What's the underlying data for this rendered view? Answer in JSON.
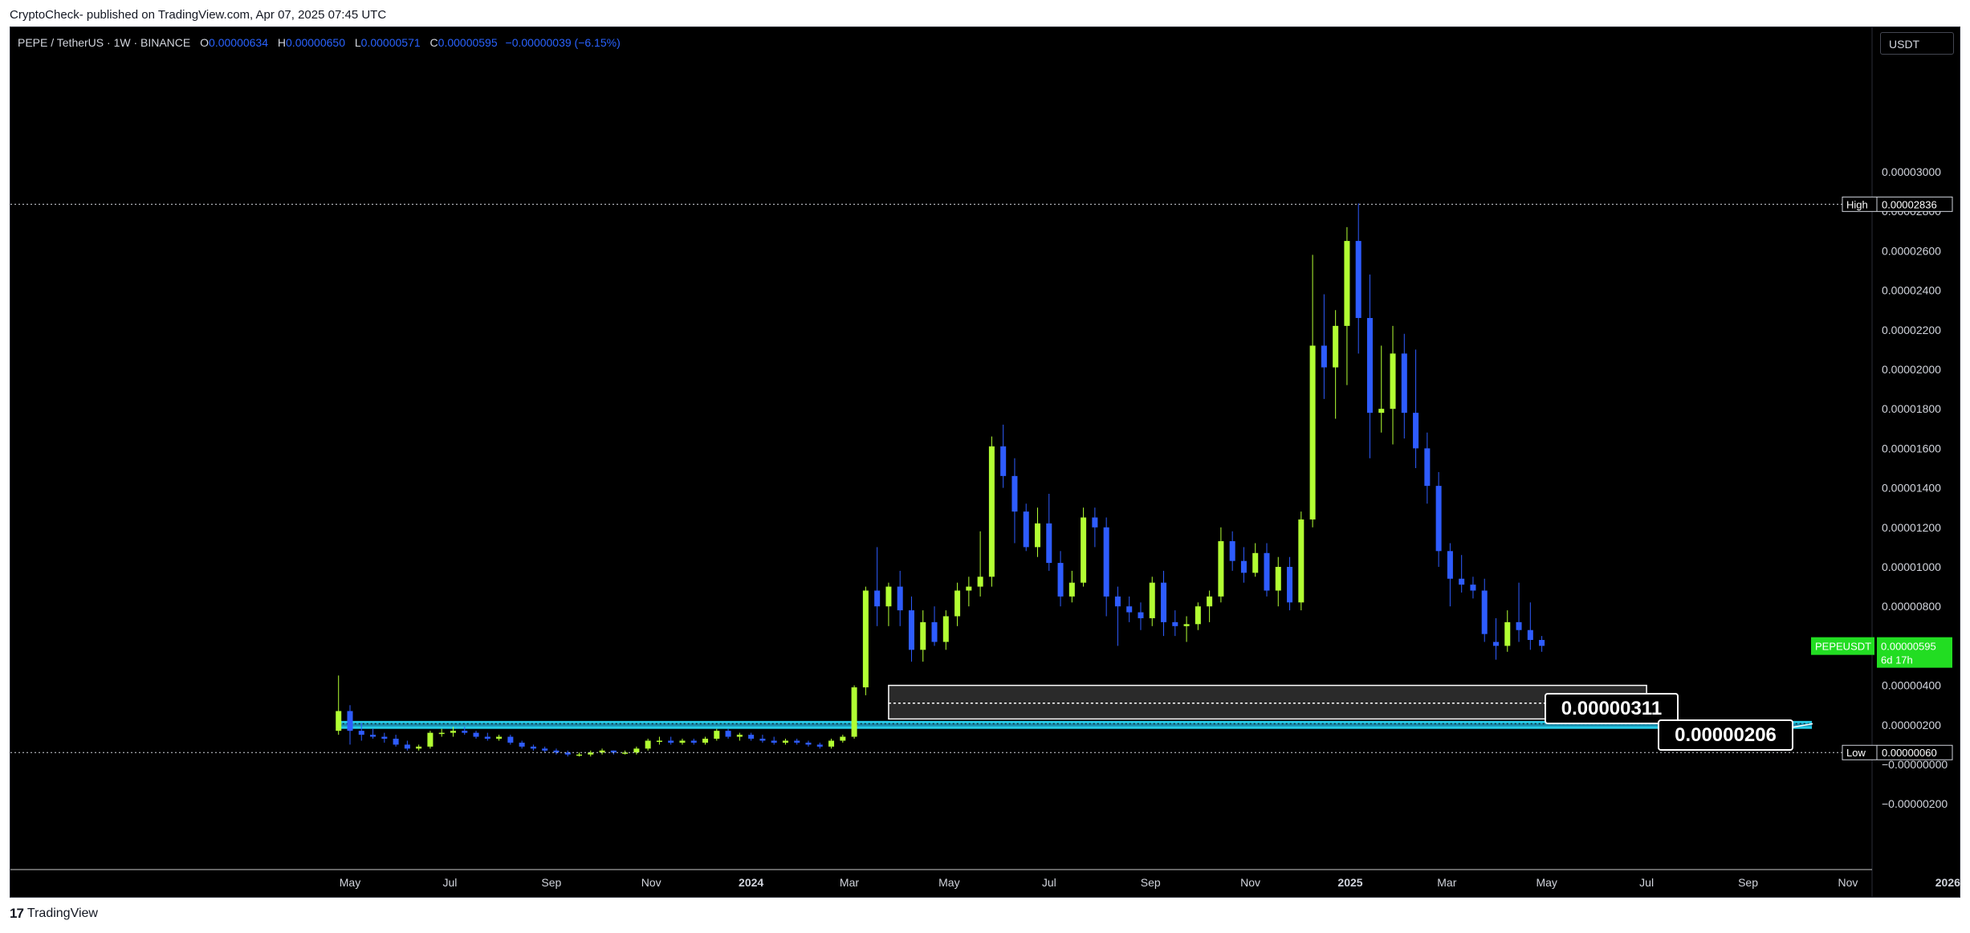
{
  "header": {
    "caption": "CryptoCheck- published on TradingView.com, Apr 07, 2025 07:45 UTC"
  },
  "legend": {
    "symbol": "PEPE / TetherUS · 1W · BINANCE",
    "open_label": "O",
    "open": "0.00000634",
    "high_label": "H",
    "high": "0.00000650",
    "low_label": "L",
    "low": "0.00000571",
    "close_label": "C",
    "close": "0.00000595",
    "change": "−0.00000039 (−6.15%)"
  },
  "currency_button": "USDT",
  "footer": {
    "logo": "17",
    "brand": "TradingView"
  },
  "colors": {
    "bull": "#b2ff33",
    "bear": "#2e5cff",
    "support": "#29d6f2",
    "price_badge": "#22dd22",
    "background": "#000000"
  },
  "chart_data": {
    "type": "candlestick",
    "y_axis": {
      "ticks": [
        3e-05,
        2.8e-05,
        2.6e-05,
        2.4e-05,
        2.2e-05,
        2e-05,
        1.8e-05,
        1.6e-05,
        1.4e-05,
        1.2e-05,
        1e-05,
        8e-06,
        4e-06,
        2e-06,
        0,
        -2e-06
      ],
      "tick_labels": [
        "0.00003000",
        "0.00002800",
        "0.00002600",
        "0.00002400",
        "0.00002200",
        "0.00002000",
        "0.00001800",
        "0.00001600",
        "0.00001400",
        "0.00001200",
        "0.00001000",
        "0.00000800",
        "0.00000400",
        "0.00000200",
        "−0.00000000",
        "−0.00000200"
      ]
    },
    "x_axis": {
      "ticks": [
        {
          "label": "May",
          "date": "2023-05-01",
          "bold": false
        },
        {
          "label": "Jul",
          "date": "2023-07-01",
          "bold": false
        },
        {
          "label": "Sep",
          "date": "2023-09-01",
          "bold": false
        },
        {
          "label": "Nov",
          "date": "2023-11-01",
          "bold": false
        },
        {
          "label": "2024",
          "date": "2024-01-01",
          "bold": true
        },
        {
          "label": "Mar",
          "date": "2024-03-01",
          "bold": false
        },
        {
          "label": "May",
          "date": "2024-05-01",
          "bold": false
        },
        {
          "label": "Jul",
          "date": "2024-07-01",
          "bold": false
        },
        {
          "label": "Sep",
          "date": "2024-09-01",
          "bold": false
        },
        {
          "label": "Nov",
          "date": "2024-11-01",
          "bold": false
        },
        {
          "label": "2025",
          "date": "2025-01-01",
          "bold": true
        },
        {
          "label": "Mar",
          "date": "2025-03-01",
          "bold": false
        },
        {
          "label": "May",
          "date": "2025-05-01",
          "bold": false
        },
        {
          "label": "Jul",
          "date": "2025-07-01",
          "bold": false
        },
        {
          "label": "Sep",
          "date": "2025-09-01",
          "bold": false
        },
        {
          "label": "Nov",
          "date": "2025-11-01",
          "bold": false
        },
        {
          "label": "2026",
          "date": "2026-01-01",
          "bold": true
        }
      ]
    },
    "candles": [
      {
        "t": "2023-04-24",
        "o": 1.7e-06,
        "h": 4.5e-06,
        "l": 1.5e-06,
        "c": 2.7e-06
      },
      {
        "t": "2023-05-01",
        "o": 2.7e-06,
        "h": 3e-06,
        "l": 1e-06,
        "c": 1.7e-06
      },
      {
        "t": "2023-05-08",
        "o": 1.7e-06,
        "h": 2.1e-06,
        "l": 1.2e-06,
        "c": 1.5e-06
      },
      {
        "t": "2023-05-15",
        "o": 1.5e-06,
        "h": 1.8e-06,
        "l": 1.3e-06,
        "c": 1.4e-06
      },
      {
        "t": "2023-05-22",
        "o": 1.4e-06,
        "h": 1.6e-06,
        "l": 1.1e-06,
        "c": 1.3e-06
      },
      {
        "t": "2023-05-29",
        "o": 1.3e-06,
        "h": 1.5e-06,
        "l": 9e-07,
        "c": 1e-06
      },
      {
        "t": "2023-06-05",
        "o": 1e-06,
        "h": 1.2e-06,
        "l": 7e-07,
        "c": 8e-07
      },
      {
        "t": "2023-06-12",
        "o": 8e-07,
        "h": 1e-06,
        "l": 7e-07,
        "c": 9e-07
      },
      {
        "t": "2023-06-19",
        "o": 9e-07,
        "h": 1.7e-06,
        "l": 8e-07,
        "c": 1.6e-06
      },
      {
        "t": "2023-06-26",
        "o": 1.6e-06,
        "h": 1.8e-06,
        "l": 1.4e-06,
        "c": 1.6e-06
      },
      {
        "t": "2023-07-03",
        "o": 1.6e-06,
        "h": 1.9e-06,
        "l": 1.4e-06,
        "c": 1.7e-06
      },
      {
        "t": "2023-07-10",
        "o": 1.7e-06,
        "h": 1.9e-06,
        "l": 1.5e-06,
        "c": 1.6e-06
      },
      {
        "t": "2023-07-17",
        "o": 1.6e-06,
        "h": 1.7e-06,
        "l": 1.3e-06,
        "c": 1.4e-06
      },
      {
        "t": "2023-07-24",
        "o": 1.4e-06,
        "h": 1.6e-06,
        "l": 1.2e-06,
        "c": 1.3e-06
      },
      {
        "t": "2023-07-31",
        "o": 1.3e-06,
        "h": 1.5e-06,
        "l": 1.2e-06,
        "c": 1.4e-06
      },
      {
        "t": "2023-08-07",
        "o": 1.4e-06,
        "h": 1.5e-06,
        "l": 1e-06,
        "c": 1.1e-06
      },
      {
        "t": "2023-08-14",
        "o": 1.1e-06,
        "h": 1.2e-06,
        "l": 8e-07,
        "c": 9e-07
      },
      {
        "t": "2023-08-21",
        "o": 9e-07,
        "h": 1e-06,
        "l": 7e-07,
        "c": 8e-07
      },
      {
        "t": "2023-08-28",
        "o": 8e-07,
        "h": 9e-07,
        "l": 6e-07,
        "c": 7e-07
      },
      {
        "t": "2023-09-04",
        "o": 7e-07,
        "h": 8e-07,
        "l": 5e-07,
        "c": 6e-07
      },
      {
        "t": "2023-09-11",
        "o": 6e-07,
        "h": 7e-07,
        "l": 4e-07,
        "c": 5e-07
      },
      {
        "t": "2023-09-18",
        "o": 5e-07,
        "h": 6e-07,
        "l": 4e-07,
        "c": 5e-07
      },
      {
        "t": "2023-09-25",
        "o": 5e-07,
        "h": 7e-07,
        "l": 4e-07,
        "c": 6e-07
      },
      {
        "t": "2023-10-02",
        "o": 6e-07,
        "h": 8e-07,
        "l": 5e-07,
        "c": 7e-07
      },
      {
        "t": "2023-10-09",
        "o": 7e-07,
        "h": 7e-07,
        "l": 5e-07,
        "c": 6e-07
      },
      {
        "t": "2023-10-16",
        "o": 6e-07,
        "h": 7e-07,
        "l": 5e-07,
        "c": 6e-07
      },
      {
        "t": "2023-10-23",
        "o": 6e-07,
        "h": 9e-07,
        "l": 5e-07,
        "c": 8e-07
      },
      {
        "t": "2023-10-30",
        "o": 8e-07,
        "h": 1.3e-06,
        "l": 7e-07,
        "c": 1.2e-06
      },
      {
        "t": "2023-11-06",
        "o": 1.2e-06,
        "h": 1.4e-06,
        "l": 1e-06,
        "c": 1.2e-06
      },
      {
        "t": "2023-11-13",
        "o": 1.2e-06,
        "h": 1.4e-06,
        "l": 1e-06,
        "c": 1.1e-06
      },
      {
        "t": "2023-11-20",
        "o": 1.1e-06,
        "h": 1.3e-06,
        "l": 1e-06,
        "c": 1.2e-06
      },
      {
        "t": "2023-11-27",
        "o": 1.2e-06,
        "h": 1.3e-06,
        "l": 1e-06,
        "c": 1.1e-06
      },
      {
        "t": "2023-12-04",
        "o": 1.1e-06,
        "h": 1.4e-06,
        "l": 1e-06,
        "c": 1.3e-06
      },
      {
        "t": "2023-12-11",
        "o": 1.3e-06,
        "h": 1.8e-06,
        "l": 1.2e-06,
        "c": 1.7e-06
      },
      {
        "t": "2023-12-18",
        "o": 1.7e-06,
        "h": 1.8e-06,
        "l": 1.3e-06,
        "c": 1.4e-06
      },
      {
        "t": "2023-12-25",
        "o": 1.4e-06,
        "h": 1.6e-06,
        "l": 1.2e-06,
        "c": 1.5e-06
      },
      {
        "t": "2024-01-01",
        "o": 1.5e-06,
        "h": 1.6e-06,
        "l": 1.2e-06,
        "c": 1.3e-06
      },
      {
        "t": "2024-01-08",
        "o": 1.3e-06,
        "h": 1.5e-06,
        "l": 1.1e-06,
        "c": 1.2e-06
      },
      {
        "t": "2024-01-15",
        "o": 1.2e-06,
        "h": 1.4e-06,
        "l": 1e-06,
        "c": 1.1e-06
      },
      {
        "t": "2024-01-22",
        "o": 1.1e-06,
        "h": 1.3e-06,
        "l": 1e-06,
        "c": 1.2e-06
      },
      {
        "t": "2024-01-29",
        "o": 1.2e-06,
        "h": 1.3e-06,
        "l": 1e-06,
        "c": 1.1e-06
      },
      {
        "t": "2024-02-05",
        "o": 1.1e-06,
        "h": 1.2e-06,
        "l": 9e-07,
        "c": 1e-06
      },
      {
        "t": "2024-02-12",
        "o": 1e-06,
        "h": 1.1e-06,
        "l": 8e-07,
        "c": 9e-07
      },
      {
        "t": "2024-02-19",
        "o": 9e-07,
        "h": 1.3e-06,
        "l": 8e-07,
        "c": 1.2e-06
      },
      {
        "t": "2024-02-26",
        "o": 1.2e-06,
        "h": 1.5e-06,
        "l": 1.1e-06,
        "c": 1.4e-06
      },
      {
        "t": "2024-03-04",
        "o": 1.4e-06,
        "h": 4e-06,
        "l": 1.3e-06,
        "c": 3.9e-06
      },
      {
        "t": "2024-03-11",
        "o": 3.9e-06,
        "h": 9e-06,
        "l": 3.5e-06,
        "c": 8.8e-06
      },
      {
        "t": "2024-03-18",
        "o": 8.8e-06,
        "h": 1.1e-05,
        "l": 7e-06,
        "c": 8e-06
      },
      {
        "t": "2024-03-25",
        "o": 8e-06,
        "h": 9.2e-06,
        "l": 7e-06,
        "c": 9e-06
      },
      {
        "t": "2024-04-01",
        "o": 9e-06,
        "h": 9.8e-06,
        "l": 7e-06,
        "c": 7.8e-06
      },
      {
        "t": "2024-04-08",
        "o": 7.8e-06,
        "h": 8.5e-06,
        "l": 5.2e-06,
        "c": 5.8e-06
      },
      {
        "t": "2024-04-15",
        "o": 5.8e-06,
        "h": 7.8e-06,
        "l": 5.2e-06,
        "c": 7.2e-06
      },
      {
        "t": "2024-04-22",
        "o": 7.2e-06,
        "h": 8e-06,
        "l": 6e-06,
        "c": 6.2e-06
      },
      {
        "t": "2024-04-29",
        "o": 6.2e-06,
        "h": 7.8e-06,
        "l": 5.8e-06,
        "c": 7.5e-06
      },
      {
        "t": "2024-05-06",
        "o": 7.5e-06,
        "h": 9.2e-06,
        "l": 7e-06,
        "c": 8.8e-06
      },
      {
        "t": "2024-05-13",
        "o": 8.8e-06,
        "h": 9.5e-06,
        "l": 8e-06,
        "c": 9e-06
      },
      {
        "t": "2024-05-20",
        "o": 9e-06,
        "h": 1.18e-05,
        "l": 8.5e-06,
        "c": 9.5e-06
      },
      {
        "t": "2024-05-27",
        "o": 9.5e-06,
        "h": 1.66e-05,
        "l": 9e-06,
        "c": 1.61e-05
      },
      {
        "t": "2024-06-03",
        "o": 1.61e-05,
        "h": 1.72e-05,
        "l": 1.4e-05,
        "c": 1.46e-05
      },
      {
        "t": "2024-06-10",
        "o": 1.46e-05,
        "h": 1.55e-05,
        "l": 1.12e-05,
        "c": 1.28e-05
      },
      {
        "t": "2024-06-17",
        "o": 1.28e-05,
        "h": 1.32e-05,
        "l": 1.08e-05,
        "c": 1.1e-05
      },
      {
        "t": "2024-06-24",
        "o": 1.1e-05,
        "h": 1.3e-05,
        "l": 1.05e-05,
        "c": 1.22e-05
      },
      {
        "t": "2024-07-01",
        "o": 1.22e-05,
        "h": 1.37e-05,
        "l": 9.8e-06,
        "c": 1.02e-05
      },
      {
        "t": "2024-07-08",
        "o": 1.02e-05,
        "h": 1.08e-05,
        "l": 8e-06,
        "c": 8.5e-06
      },
      {
        "t": "2024-07-15",
        "o": 8.5e-06,
        "h": 9.8e-06,
        "l": 8.2e-06,
        "c": 9.2e-06
      },
      {
        "t": "2024-07-22",
        "o": 9.2e-06,
        "h": 1.3e-05,
        "l": 9e-06,
        "c": 1.25e-05
      },
      {
        "t": "2024-07-29",
        "o": 1.25e-05,
        "h": 1.3e-05,
        "l": 1.1e-05,
        "c": 1.2e-05
      },
      {
        "t": "2024-08-05",
        "o": 1.2e-05,
        "h": 1.25e-05,
        "l": 7.5e-06,
        "c": 8.5e-06
      },
      {
        "t": "2024-08-12",
        "o": 8.5e-06,
        "h": 9e-06,
        "l": 6e-06,
        "c": 8e-06
      },
      {
        "t": "2024-08-19",
        "o": 8e-06,
        "h": 8.5e-06,
        "l": 7.2e-06,
        "c": 7.7e-06
      },
      {
        "t": "2024-08-26",
        "o": 7.7e-06,
        "h": 8.2e-06,
        "l": 6.8e-06,
        "c": 7.4e-06
      },
      {
        "t": "2024-09-02",
        "o": 7.4e-06,
        "h": 9.5e-06,
        "l": 7e-06,
        "c": 9.2e-06
      },
      {
        "t": "2024-09-09",
        "o": 9.2e-06,
        "h": 9.8e-06,
        "l": 6.5e-06,
        "c": 7.2e-06
      },
      {
        "t": "2024-09-16",
        "o": 7.2e-06,
        "h": 7.8e-06,
        "l": 6.5e-06,
        "c": 7e-06
      },
      {
        "t": "2024-09-23",
        "o": 7e-06,
        "h": 7.5e-06,
        "l": 6.2e-06,
        "c": 7.1e-06
      },
      {
        "t": "2024-09-30",
        "o": 7.1e-06,
        "h": 8.2e-06,
        "l": 6.8e-06,
        "c": 8e-06
      },
      {
        "t": "2024-10-07",
        "o": 8e-06,
        "h": 8.8e-06,
        "l": 7.2e-06,
        "c": 8.5e-06
      },
      {
        "t": "2024-10-14",
        "o": 8.5e-06,
        "h": 1.2e-05,
        "l": 8.2e-06,
        "c": 1.13e-05
      },
      {
        "t": "2024-10-21",
        "o": 1.13e-05,
        "h": 1.18e-05,
        "l": 9.8e-06,
        "c": 1.03e-05
      },
      {
        "t": "2024-10-28",
        "o": 1.03e-05,
        "h": 1.1e-05,
        "l": 9.2e-06,
        "c": 9.7e-06
      },
      {
        "t": "2024-11-04",
        "o": 9.7e-06,
        "h": 1.12e-05,
        "l": 9.5e-06,
        "c": 1.07e-05
      },
      {
        "t": "2024-11-11",
        "o": 1.07e-05,
        "h": 1.12e-05,
        "l": 8.5e-06,
        "c": 8.8e-06
      },
      {
        "t": "2024-11-18",
        "o": 8.8e-06,
        "h": 1.05e-05,
        "l": 8e-06,
        "c": 1e-05
      },
      {
        "t": "2024-11-25",
        "o": 1e-05,
        "h": 1.05e-05,
        "l": 7.8e-06,
        "c": 8.2e-06
      },
      {
        "t": "2024-12-02",
        "o": 8.2e-06,
        "h": 1.28e-05,
        "l": 7.8e-06,
        "c": 1.24e-05
      },
      {
        "t": "2024-12-09",
        "o": 1.24e-05,
        "h": 2.58e-05,
        "l": 1.2e-05,
        "c": 2.12e-05
      },
      {
        "t": "2024-12-16",
        "o": 2.12e-05,
        "h": 2.38e-05,
        "l": 1.85e-05,
        "c": 2.01e-05
      },
      {
        "t": "2024-12-23",
        "o": 2.01e-05,
        "h": 2.3e-05,
        "l": 1.75e-05,
        "c": 2.22e-05
      },
      {
        "t": "2024-12-30",
        "o": 2.22e-05,
        "h": 2.72e-05,
        "l": 1.92e-05,
        "c": 2.65e-05
      },
      {
        "t": "2025-01-06",
        "o": 2.65e-05,
        "h": 2.84e-05,
        "l": 2.08e-05,
        "c": 2.26e-05
      },
      {
        "t": "2025-01-13",
        "o": 2.26e-05,
        "h": 2.48e-05,
        "l": 1.55e-05,
        "c": 1.78e-05
      },
      {
        "t": "2025-01-20",
        "o": 1.78e-05,
        "h": 2.12e-05,
        "l": 1.68e-05,
        "c": 1.8e-05
      },
      {
        "t": "2025-01-27",
        "o": 1.8e-05,
        "h": 2.22e-05,
        "l": 1.62e-05,
        "c": 2.08e-05
      },
      {
        "t": "2025-02-03",
        "o": 2.08e-05,
        "h": 2.18e-05,
        "l": 1.65e-05,
        "c": 1.78e-05
      },
      {
        "t": "2025-02-10",
        "o": 1.78e-05,
        "h": 2.1e-05,
        "l": 1.5e-05,
        "c": 1.6e-05
      },
      {
        "t": "2025-02-17",
        "o": 1.6e-05,
        "h": 1.68e-05,
        "l": 1.32e-05,
        "c": 1.41e-05
      },
      {
        "t": "2025-02-24",
        "o": 1.41e-05,
        "h": 1.48e-05,
        "l": 1e-05,
        "c": 1.08e-05
      },
      {
        "t": "2025-03-03",
        "o": 1.08e-05,
        "h": 1.12e-05,
        "l": 8e-06,
        "c": 9.4e-06
      },
      {
        "t": "2025-03-10",
        "o": 9.4e-06,
        "h": 1.06e-05,
        "l": 8.7e-06,
        "c": 9.1e-06
      },
      {
        "t": "2025-03-17",
        "o": 9.1e-06,
        "h": 9.5e-06,
        "l": 8.4e-06,
        "c": 8.8e-06
      },
      {
        "t": "2025-03-24",
        "o": 8.8e-06,
        "h": 9.4e-06,
        "l": 6.2e-06,
        "c": 6.6e-06
      },
      {
        "t": "2025-03-31",
        "o": 6.2e-06,
        "h": 7.4e-06,
        "l": 5.3e-06,
        "c": 6e-06
      },
      {
        "t": "2025-04-07",
        "o": 6e-06,
        "h": 7.8e-06,
        "l": 5.7e-06,
        "c": 7.2e-06
      },
      {
        "t": "2025-04-14",
        "o": 7.2e-06,
        "h": 9.2e-06,
        "l": 6.2e-06,
        "c": 6.8e-06
      },
      {
        "t": "2025-04-21",
        "o": 6.8e-06,
        "h": 8.2e-06,
        "l": 5.8e-06,
        "c": 6.3e-06
      },
      {
        "t": "2025-04-28",
        "o": 6.3e-06,
        "h": 6.5e-06,
        "l": 5.7e-06,
        "c": 6e-06
      }
    ],
    "high_line": {
      "label": "High",
      "value": 2.836e-05,
      "value_label": "0.00002836"
    },
    "low_line": {
      "label": "Low",
      "value": 6e-07,
      "value_label": "0.00000060"
    },
    "price_badge": {
      "symbol": "PEPEUSDT",
      "value": 5.95e-06,
      "value_label": "0.00000595",
      "countdown": "6d 17h"
    },
    "zones": [
      {
        "name": "demand-zone",
        "from": "2024-03-25",
        "to": "2025-07-01",
        "top": 4e-06,
        "bottom": 2.3e-06,
        "mid": 3.1e-06,
        "label": "0.00000311",
        "kind": "grey"
      },
      {
        "name": "support-zone",
        "from": "2023-04-24",
        "to": "2025-10-10",
        "top": 2.2e-06,
        "bottom": 1.8e-06,
        "mid": 2.06e-06,
        "label": "0.00000206",
        "kind": "cyan"
      }
    ]
  }
}
